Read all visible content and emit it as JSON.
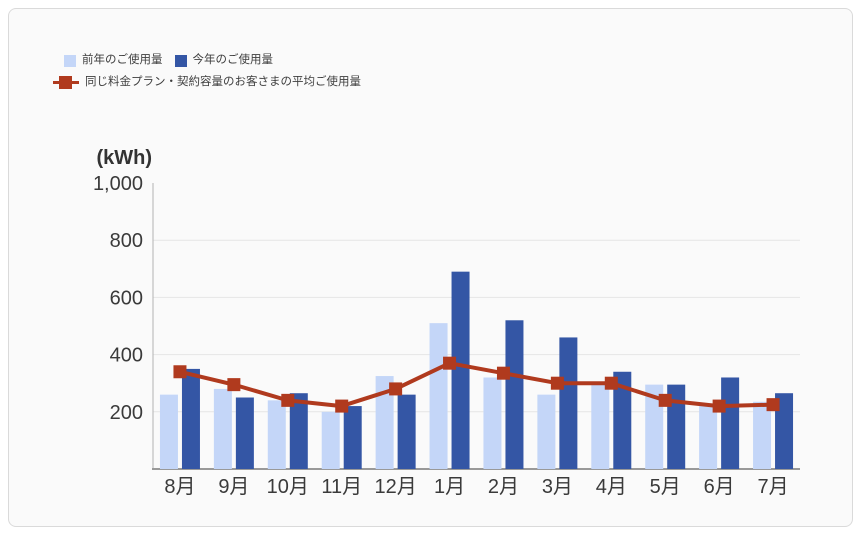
{
  "legend": {
    "last_year": "前年のご使用量",
    "this_year": "今年のご使用量",
    "average": "同じ料金プラン・契約容量のお客さまの平均ご使用量"
  },
  "y_axis": {
    "unit_label": "(kWh)"
  },
  "colors": {
    "last_year_bar": "#c4d6f8",
    "this_year_bar": "#3456a5",
    "average_line": "#b03a1e",
    "grid_line": "#e5e5e5",
    "y_axis_line": "#b3b3b3",
    "x_axis_line": "#999999",
    "card_background": "#fafafa",
    "card_border": "#dadada",
    "tick_text": "#3a3a3a"
  },
  "chart_data": {
    "type": "bar",
    "title": "",
    "unit": "kWh",
    "categories": [
      "8月",
      "9月",
      "10月",
      "11月",
      "12月",
      "1月",
      "2月",
      "3月",
      "4月",
      "5月",
      "6月",
      "7月"
    ],
    "series": [
      {
        "name": "前年のご使用量",
        "type": "bar",
        "color": "#c4d6f8",
        "values": [
          260,
          280,
          240,
          200,
          325,
          510,
          320,
          260,
          295,
          295,
          220,
          235
        ]
      },
      {
        "name": "今年のご使用量",
        "type": "bar",
        "color": "#3456a5",
        "values": [
          350,
          250,
          265,
          220,
          260,
          690,
          520,
          460,
          340,
          295,
          320,
          265
        ]
      },
      {
        "name": "同じ料金プラン・契約容量のお客さまの平均ご使用量",
        "type": "line",
        "color": "#b03a1e",
        "values": [
          340,
          295,
          240,
          220,
          280,
          370,
          335,
          300,
          300,
          240,
          220,
          225
        ]
      }
    ],
    "xlabel": "",
    "ylabel": "(kWh)",
    "ylim": [
      0,
      1000
    ],
    "ytick_values": [
      200,
      400,
      600,
      800,
      1000
    ],
    "ytick_labels": [
      "200",
      "400",
      "600",
      "800",
      "1,000"
    ],
    "grid": true,
    "legend_position": "top-left"
  }
}
